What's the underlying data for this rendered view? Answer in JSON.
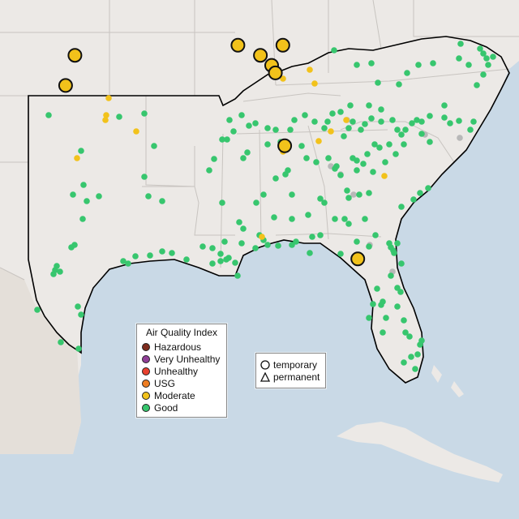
{
  "legend": {
    "title": "Air Quality Index",
    "items": [
      {
        "label": "Hazardous",
        "color": "#7e2c1e"
      },
      {
        "label": "Very Unhealthy",
        "color": "#8f3f97"
      },
      {
        "label": "Unhealthy",
        "color": "#e8412f"
      },
      {
        "label": "USG",
        "color": "#ef7e22"
      },
      {
        "label": "Moderate",
        "color": "#f2c21b"
      },
      {
        "label": "Good",
        "color": "#37c66e"
      }
    ]
  },
  "shape_legend": {
    "items": [
      {
        "label": "temporary",
        "icon": "circle-icon"
      },
      {
        "label": "permanent",
        "icon": "triangle-icon"
      }
    ]
  },
  "colors": {
    "land": "#ece9e6",
    "water": "#c9d9e6",
    "state_border": "#c8c4c0",
    "region_outline": "#000000",
    "offline_station": "#b8b8b8"
  },
  "monitors": {
    "moderate_large": [
      {
        "lon": -97.5,
        "lat": 36.0
      },
      {
        "lon": -98.0,
        "lat": 34.8
      },
      {
        "lon": -88.8,
        "lat": 36.4
      },
      {
        "lon": -87.6,
        "lat": 36.0
      },
      {
        "lon": -87.0,
        "lat": 35.6
      },
      {
        "lon": -86.4,
        "lat": 36.4
      },
      {
        "lon": -86.8,
        "lat": 35.3
      },
      {
        "lon": -86.3,
        "lat": 32.4
      },
      {
        "lon": -82.4,
        "lat": 27.9
      }
    ]
  }
}
